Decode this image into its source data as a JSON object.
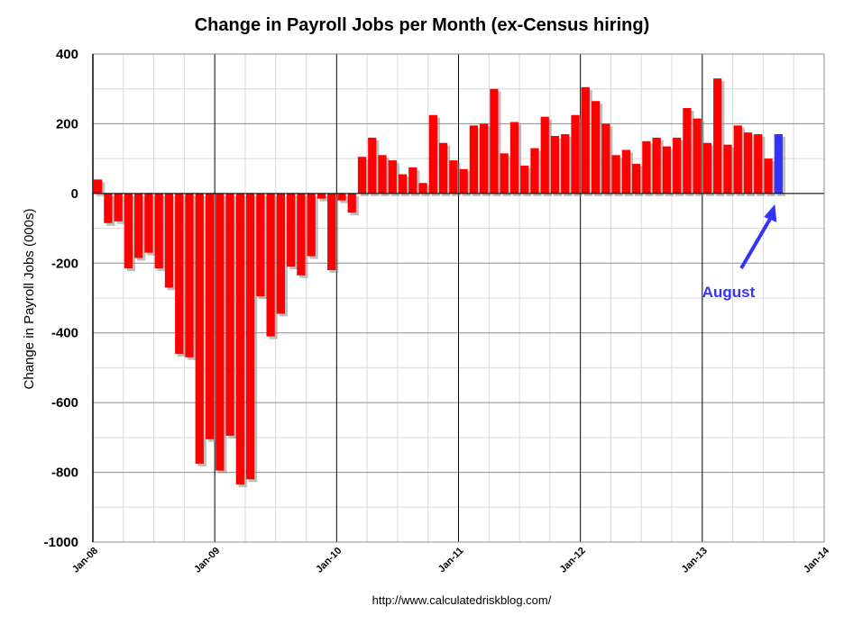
{
  "chart_data": {
    "type": "bar",
    "title": "Change in Payroll Jobs per Month (ex-Census hiring)",
    "ylabel": "Change in Payroll Jobs (000s)",
    "source": "http://www.calculatedriskblog.com/",
    "ylim": [
      -1000,
      400
    ],
    "yticks": [
      "400",
      "200",
      "0",
      "-200",
      "-400",
      "-600",
      "-800",
      "-1000"
    ],
    "ytick_values": [
      400,
      200,
      0,
      -200,
      -400,
      -600,
      -800,
      -1000
    ],
    "xticks": [
      "Jan-08",
      "Jan-09",
      "Jan-10",
      "Jan-11",
      "Jan-12",
      "Jan-13",
      "Jan-14"
    ],
    "grid": true,
    "bar_color": "#ff0000",
    "highlight_color": "#3333ff",
    "annotation": {
      "text": "August",
      "target_index": 67,
      "color": "#3333ff"
    },
    "x_start": "Jan-08",
    "values": [
      40,
      -85,
      -80,
      -215,
      -185,
      -170,
      -215,
      -270,
      -460,
      -470,
      -775,
      -705,
      -795,
      -695,
      -835,
      -820,
      -295,
      -410,
      -345,
      -210,
      -235,
      -180,
      -15,
      -220,
      -20,
      -55,
      105,
      160,
      110,
      95,
      55,
      75,
      30,
      225,
      145,
      95,
      70,
      195,
      200,
      300,
      115,
      205,
      80,
      130,
      220,
      165,
      170,
      225,
      305,
      265,
      200,
      110,
      125,
      85,
      150,
      160,
      135,
      160,
      245,
      215,
      145,
      330,
      140,
      195,
      175,
      170,
      100,
      170
    ]
  }
}
